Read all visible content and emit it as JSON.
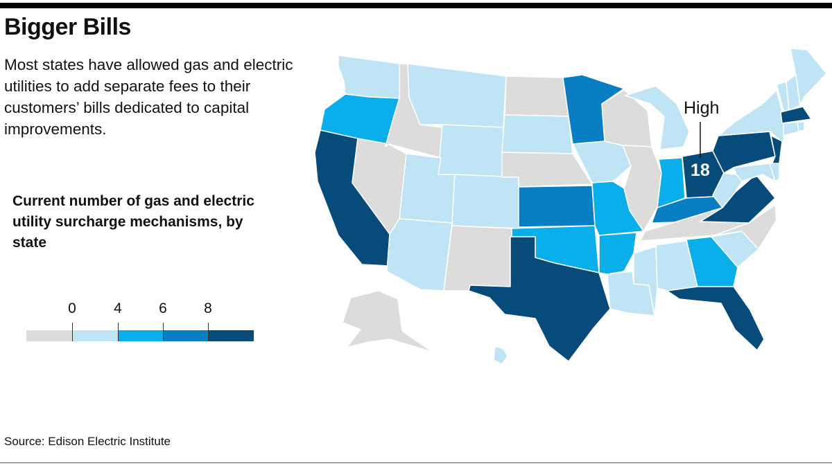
{
  "header": {
    "title": "Bigger Bills",
    "subtitle": "Most states have allowed gas and electric utilities to add separate fees to their customers’ bills dedicated to capital improvements."
  },
  "legend": {
    "title": "Current number of gas and electric utility surcharge mechanisms, by state",
    "ticks": [
      "0",
      "4",
      "6",
      "8"
    ],
    "bins": [
      {
        "color": "#dcdcdc"
      },
      {
        "color": "#bfe4f6"
      },
      {
        "color": "#09aeea"
      },
      {
        "color": "#0a7ec2"
      },
      {
        "color": "#064b7a"
      }
    ]
  },
  "annotation": {
    "label": "High",
    "value": "18",
    "state": "Ohio"
  },
  "source": "Source: Edison Electric Institute",
  "colors": {
    "zero": "#dcdcdc",
    "low": "#bfe4f6",
    "mid": "#09aeea",
    "high": "#0a7ec2",
    "top": "#064b7a",
    "border": "#ffffff"
  },
  "states": [
    {
      "name": "Washington",
      "bin": "low"
    },
    {
      "name": "Oregon",
      "bin": "mid"
    },
    {
      "name": "California",
      "bin": "top"
    },
    {
      "name": "Nevada",
      "bin": "zero"
    },
    {
      "name": "Idaho",
      "bin": "zero"
    },
    {
      "name": "Montana",
      "bin": "low"
    },
    {
      "name": "Wyoming",
      "bin": "low"
    },
    {
      "name": "Utah",
      "bin": "low"
    },
    {
      "name": "Arizona",
      "bin": "low"
    },
    {
      "name": "Colorado",
      "bin": "low"
    },
    {
      "name": "New Mexico",
      "bin": "zero"
    },
    {
      "name": "North Dakota",
      "bin": "zero"
    },
    {
      "name": "South Dakota",
      "bin": "low"
    },
    {
      "name": "Nebraska",
      "bin": "zero"
    },
    {
      "name": "Kansas",
      "bin": "high"
    },
    {
      "name": "Oklahoma",
      "bin": "mid"
    },
    {
      "name": "Texas",
      "bin": "top"
    },
    {
      "name": "Minnesota",
      "bin": "high"
    },
    {
      "name": "Iowa",
      "bin": "low"
    },
    {
      "name": "Missouri",
      "bin": "mid"
    },
    {
      "name": "Arkansas",
      "bin": "mid"
    },
    {
      "name": "Louisiana",
      "bin": "low"
    },
    {
      "name": "Wisconsin",
      "bin": "zero"
    },
    {
      "name": "Illinois",
      "bin": "zero"
    },
    {
      "name": "Michigan",
      "bin": "low"
    },
    {
      "name": "Indiana",
      "bin": "mid"
    },
    {
      "name": "Ohio",
      "bin": "top"
    },
    {
      "name": "Kentucky",
      "bin": "high"
    },
    {
      "name": "Tennessee",
      "bin": "zero"
    },
    {
      "name": "Mississippi",
      "bin": "low"
    },
    {
      "name": "Alabama",
      "bin": "low"
    },
    {
      "name": "Georgia",
      "bin": "mid"
    },
    {
      "name": "Florida",
      "bin": "top"
    },
    {
      "name": "South Carolina",
      "bin": "low"
    },
    {
      "name": "North Carolina",
      "bin": "zero"
    },
    {
      "name": "Virginia",
      "bin": "top"
    },
    {
      "name": "West Virginia",
      "bin": "low"
    },
    {
      "name": "Pennsylvania",
      "bin": "top"
    },
    {
      "name": "New York",
      "bin": "low"
    },
    {
      "name": "New Jersey",
      "bin": "top"
    },
    {
      "name": "Maryland",
      "bin": "low"
    },
    {
      "name": "Delaware",
      "bin": "low"
    },
    {
      "name": "Vermont",
      "bin": "low"
    },
    {
      "name": "New Hampshire",
      "bin": "low"
    },
    {
      "name": "Maine",
      "bin": "low"
    },
    {
      "name": "Massachusetts",
      "bin": "top"
    },
    {
      "name": "Connecticut",
      "bin": "low"
    },
    {
      "name": "Rhode Island",
      "bin": "low"
    },
    {
      "name": "Alaska",
      "bin": "zero"
    },
    {
      "name": "Hawaii",
      "bin": "low"
    }
  ]
}
